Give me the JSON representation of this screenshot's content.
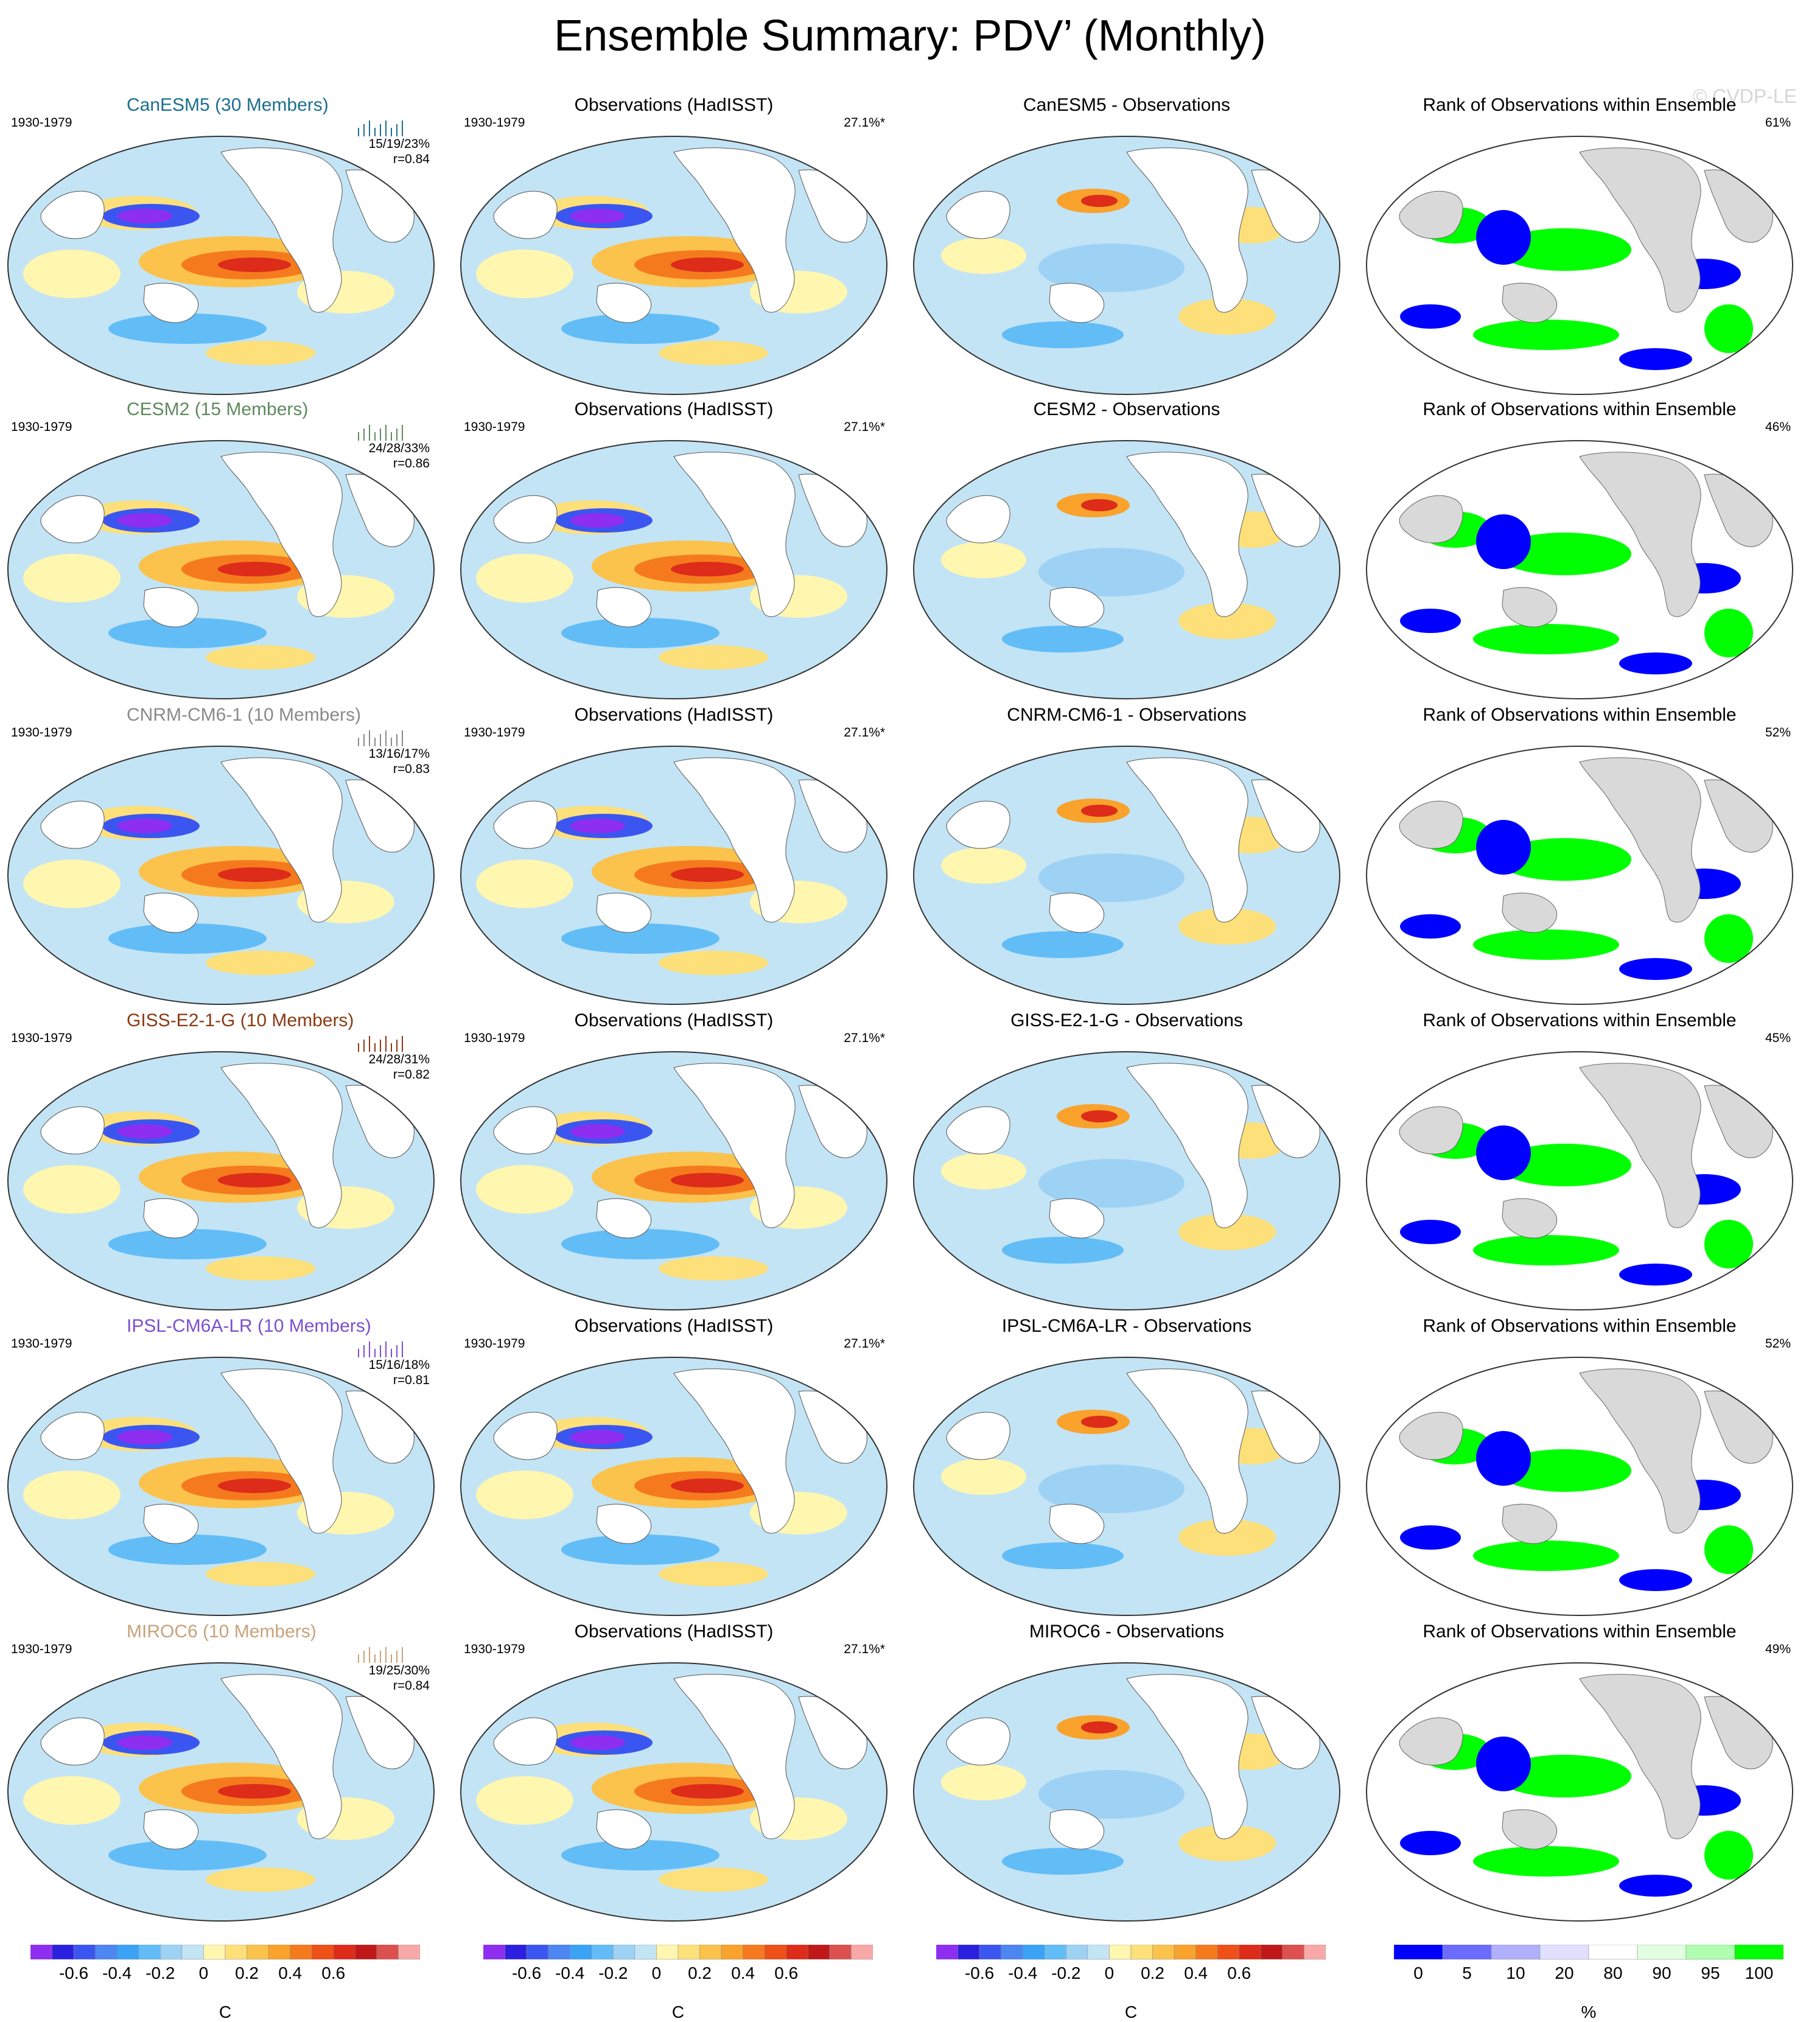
{
  "title": "Ensemble Summary: PDV’ (Monthly)",
  "watermark": "© CVDP-LE",
  "years": "1930-1979",
  "obs_title": "Observations (HadISST)",
  "obs_pct": "27.1%*",
  "rank_title": "Rank of Observations within Ensemble",
  "colors": {
    "CanESM5": "#1b6f8f",
    "CESM2": "#5e8a5e",
    "CNRM-CM6-1": "#8a8a8a",
    "GISS-E2-1-G": "#8b3a12",
    "IPSL-CM6A-LR": "#7b4fd0",
    "MIROC6": "#c9a27a"
  },
  "rows": [
    {
      "model": "CanESM5",
      "title": "CanESM5 (30 Members)",
      "stats": "15/19/23%",
      "r": "r=0.84",
      "diff_title": "CanESM5 - Observations",
      "rank_pct": "61%"
    },
    {
      "model": "CESM2",
      "title": "CESM2 (15 Members)",
      "stats": "24/28/33%",
      "r": "r=0.86",
      "diff_title": "CESM2 - Observations",
      "rank_pct": "46%"
    },
    {
      "model": "CNRM-CM6-1",
      "title": "CNRM-CM6-1 (10 Members)",
      "stats": "13/16/17%",
      "r": "r=0.83",
      "diff_title": "CNRM-CM6-1 - Observations",
      "rank_pct": "52%"
    },
    {
      "model": "GISS-E2-1-G",
      "title": "GISS-E2-1-G (10 Members)",
      "stats": "24/28/31%",
      "r": "r=0.82",
      "diff_title": "GISS-E2-1-G - Observations",
      "rank_pct": "45%"
    },
    {
      "model": "IPSL-CM6A-LR",
      "title": "IPSL-CM6A-LR (10 Members)",
      "stats": "15/16/18%",
      "r": "r=0.81",
      "diff_title": "IPSL-CM6A-LR - Observations",
      "rank_pct": "52%"
    },
    {
      "model": "MIROC6",
      "title": "MIROC6 (10 Members)",
      "stats": "19/25/30%",
      "r": "r=0.84",
      "diff_title": "MIROC6 - Observations",
      "rank_pct": "49%"
    }
  ],
  "colorbars": {
    "sst_units": "C",
    "sst_ticks": [
      "-0.6",
      "-0.4",
      "-0.2",
      "0",
      "0.2",
      "0.4",
      "0.6"
    ],
    "sst_colors": [
      "#8e2ef0",
      "#2b1fe0",
      "#3b56f0",
      "#4d86f2",
      "#3aa3f5",
      "#62bdf7",
      "#9ed2f5",
      "#c3e4f5",
      "#fff6b0",
      "#fde07a",
      "#fbc24c",
      "#f9a22c",
      "#f57a1e",
      "#ee5018",
      "#dd2c1a",
      "#c01818",
      "#dd5050",
      "#f9a8a8"
    ],
    "rank_units": "%",
    "rank_ticks": [
      "0",
      "5",
      "10",
      "20",
      "80",
      "90",
      "95",
      "100"
    ],
    "rank_colors": [
      "#0000ff",
      "#6b6bff",
      "#b0b0ff",
      "#e1e1ff",
      "#ffffff",
      "#e1ffe1",
      "#b0ffb0",
      "#00ff00"
    ]
  }
}
